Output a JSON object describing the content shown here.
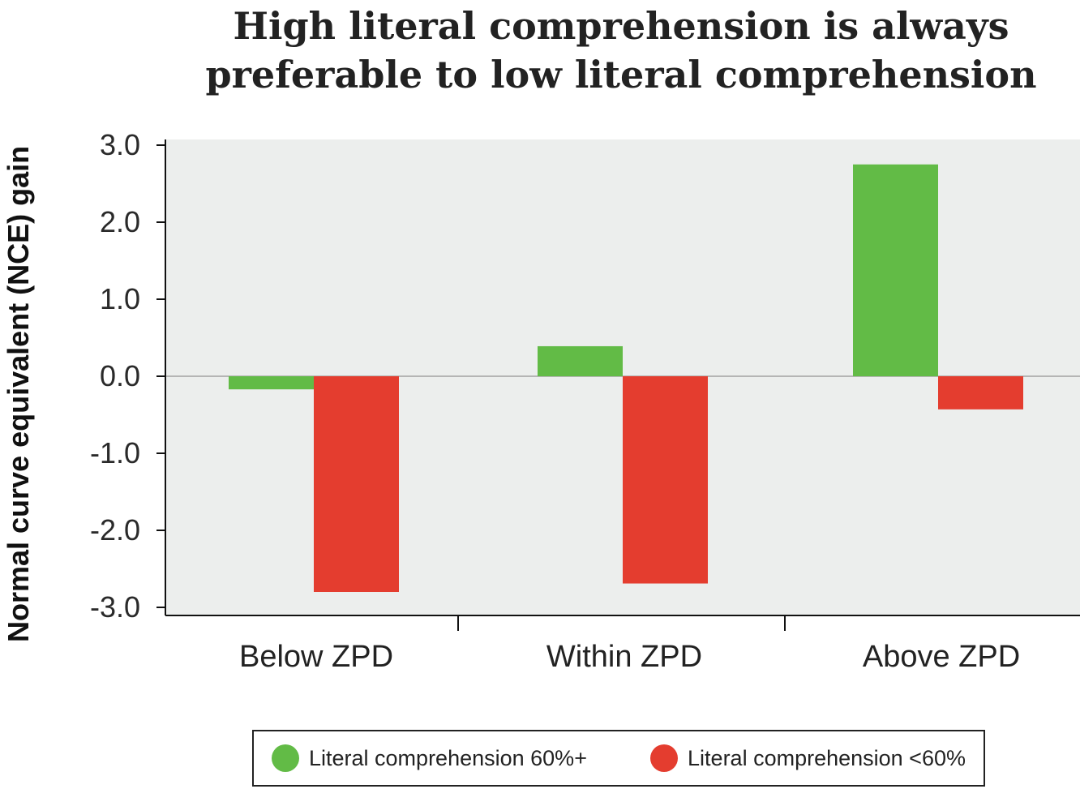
{
  "title": {
    "line1": "High literal comprehension is always",
    "line2": "preferable to low literal comprehension"
  },
  "colors": {
    "series_high": "#62bb46",
    "series_low": "#e43d2f",
    "plot_background": "#eceeed",
    "zero_line": "#b5b5b5"
  },
  "chart_data": {
    "type": "bar",
    "title": "High literal comprehension is always preferable to low literal comprehension",
    "ylabel": "Normal curve equivalent (NCE) gain",
    "xlabel": "",
    "categories": [
      "Below ZPD",
      "Within ZPD",
      "Above ZPD"
    ],
    "series": [
      {
        "name": "Literal comprehension 60%+",
        "values": [
          -0.17,
          0.39,
          2.75
        ]
      },
      {
        "name": "Literal comprehension <60%",
        "values": [
          -2.8,
          -2.69,
          -0.43
        ]
      }
    ],
    "ylim": [
      -3.0,
      3.0
    ],
    "yticks": [
      "3.0",
      "2.0",
      "1.0",
      "0.0",
      "-1.0",
      "-2.0",
      "-3.0"
    ],
    "ytick_values": [
      3.0,
      2.0,
      1.0,
      0.0,
      -1.0,
      -2.0,
      -3.0
    ],
    "grid": false,
    "legend_position": "bottom"
  }
}
